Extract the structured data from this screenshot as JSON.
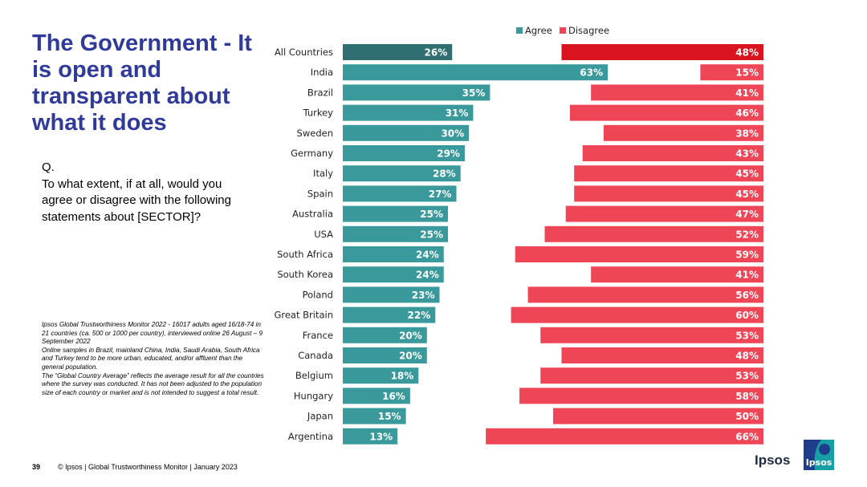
{
  "slide": {
    "title": "The Government - It is open and transparent about what it does",
    "question_label": "Q.",
    "question_text": "To what extent, if at all, would you agree or disagree with the following statements about [SECTOR]?",
    "notes": [
      "Ipsos Global Trustworthiness Monitor 2022 - 16017 adults aged 16/18-74 in 21 countries (ca. 500 or 1000 per country), interviewed online 26 August – 9 September 2022",
      "Online samples in Brazil, mainland China, India, Saudi Arabia, South Africa and Turkey tend to be more urban, educated, and/or affluent than the general population.",
      "The “Global Country Average” reflects the average result for all the countries where the survey was conducted. It has not been adjusted to the population size of each country or market and is not intended to suggest a total result."
    ],
    "page_number": "39",
    "footer_text": "© Ipsos | Global Trustworthiness Monitor | January 2023",
    "brand_word": "Ipsos",
    "logo_text": "Ipsos"
  },
  "colors": {
    "agree": "#3a9a9b",
    "agree_highlight": "#2f6f72",
    "disagree": "#ee4656",
    "disagree_highlight": "#d9141f",
    "title": "#2f3a9b"
  },
  "chart_data": {
    "type": "bar",
    "orientation": "horizontal-diverging",
    "legend": [
      "Agree",
      "Disagree"
    ],
    "legend_position": "top",
    "categories": [
      "All Countries",
      "India",
      "Brazil",
      "Turkey",
      "Sweden",
      "Germany",
      "Italy",
      "Spain",
      "Australia",
      "USA",
      "South Africa",
      "South Korea",
      "Poland",
      "Great Britain",
      "France",
      "Canada",
      "Belgium",
      "Hungary",
      "Japan",
      "Argentina"
    ],
    "series": [
      {
        "name": "Agree",
        "values": [
          26,
          63,
          35,
          31,
          30,
          29,
          28,
          27,
          25,
          25,
          24,
          24,
          23,
          22,
          20,
          20,
          18,
          16,
          15,
          13
        ]
      },
      {
        "name": "Disagree",
        "values": [
          48,
          15,
          41,
          46,
          38,
          43,
          45,
          45,
          47,
          52,
          59,
          41,
          56,
          60,
          53,
          48,
          53,
          58,
          50,
          66
        ]
      }
    ],
    "value_suffix": "%",
    "xlim": [
      0,
      100
    ]
  }
}
